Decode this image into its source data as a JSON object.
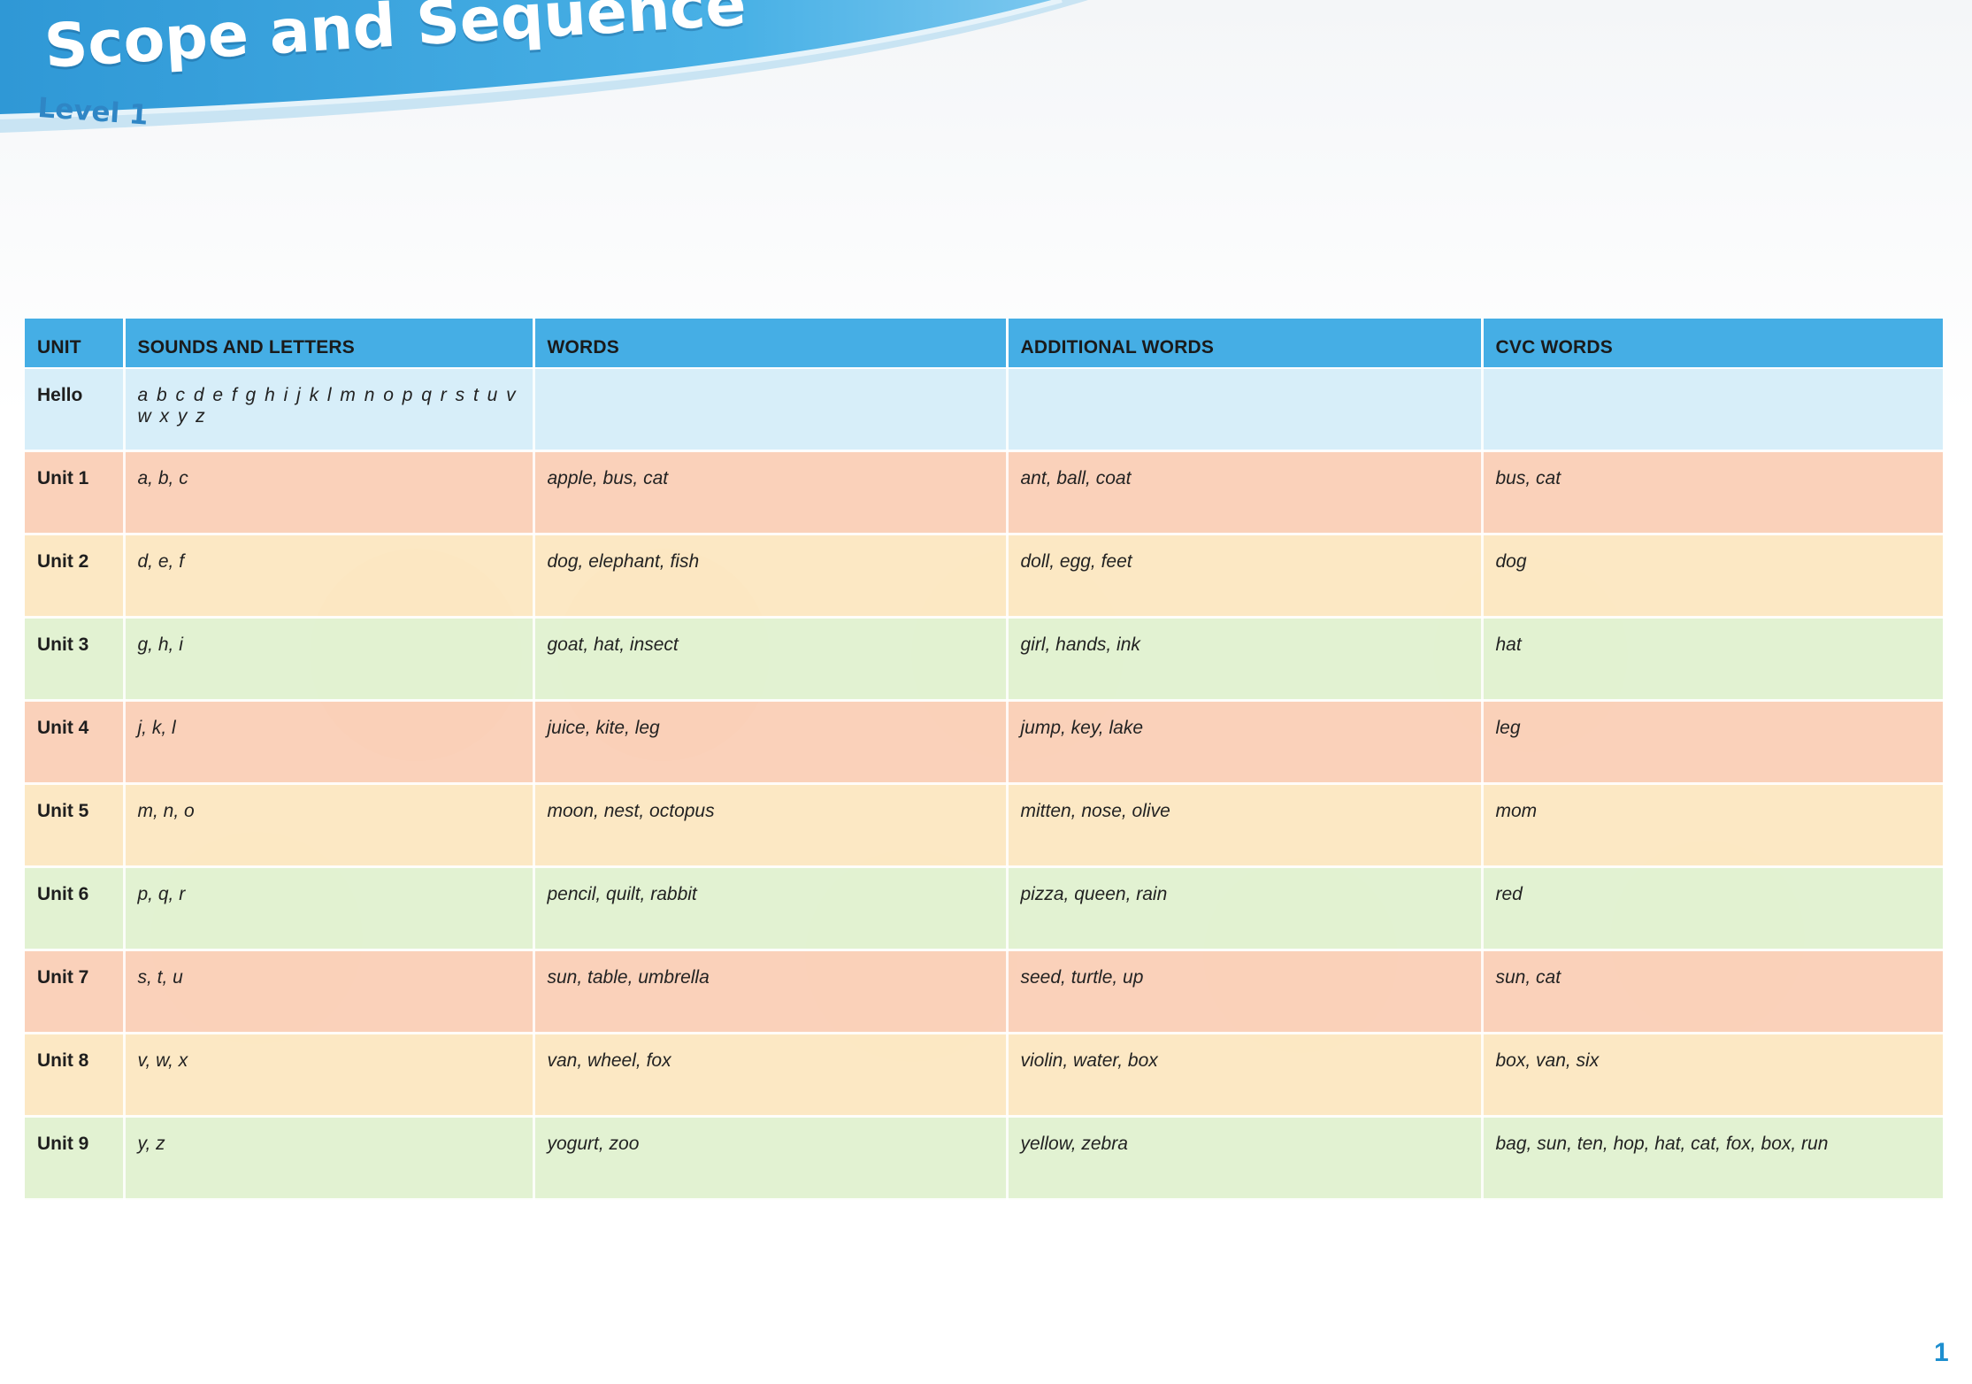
{
  "header": {
    "title": "Scope and Sequence",
    "subtitle": "Level 1"
  },
  "table": {
    "columns": [
      "UNIT",
      "SOUNDS AND LETTERS",
      "WORDS",
      "ADDITIONAL WORDS",
      "CVC WORDS"
    ],
    "rows": [
      {
        "unit": "Hello",
        "sounds": "a b c d e f g h i j k l m n o p q r s t u v w x y z",
        "words": "",
        "additional": "",
        "cvc": "",
        "color": "blue"
      },
      {
        "unit": "Unit 1",
        "sounds": "a, b, c",
        "words": "apple, bus, cat",
        "additional": "ant, ball, coat",
        "cvc": "bus, cat",
        "color": "orange"
      },
      {
        "unit": "Unit 2",
        "sounds": "d, e, f",
        "words": "dog, elephant, fish",
        "additional": "doll, egg, feet",
        "cvc": "dog",
        "color": "yellow"
      },
      {
        "unit": "Unit 3",
        "sounds": "g, h, i",
        "words": "goat, hat, insect",
        "additional": "girl, hands, ink",
        "cvc": "hat",
        "color": "green"
      },
      {
        "unit": "Unit 4",
        "sounds": "j, k, l",
        "words": "juice, kite, leg",
        "additional": "jump, key, lake",
        "cvc": "leg",
        "color": "orange"
      },
      {
        "unit": "Unit 5",
        "sounds": "m, n, o",
        "words": "moon, nest, octopus",
        "additional": "mitten, nose, olive",
        "cvc": "mom",
        "color": "yellow"
      },
      {
        "unit": "Unit 6",
        "sounds": "p, q, r",
        "words": "pencil, quilt, rabbit",
        "additional": "pizza, queen, rain",
        "cvc": "red",
        "color": "green"
      },
      {
        "unit": "Unit 7",
        "sounds": "s, t, u",
        "words": "sun, table, umbrella",
        "additional": "seed, turtle, up",
        "cvc": "sun, cat",
        "color": "orange"
      },
      {
        "unit": "Unit 8",
        "sounds": "v, w, x",
        "words": "van, wheel, fox",
        "additional": "violin, water, box",
        "cvc": "box, van, six",
        "color": "yellow"
      },
      {
        "unit": "Unit 9",
        "sounds": "y, z",
        "words": "yogurt, zoo",
        "additional": "yellow, zebra",
        "cvc": "bag, sun, ten, hop, hat, cat, fox, box, run",
        "color": "green"
      }
    ]
  },
  "footer": {
    "page_number": "1"
  },
  "colors": {
    "banner_blue": "#3ea6de",
    "header_blue": "#45aee5",
    "row_blue": "#d4edf8",
    "row_orange": "#f9ccb2",
    "row_yellow": "#fce5be",
    "row_green": "#e0f1ce",
    "page_number_blue": "#1e8fcf"
  }
}
